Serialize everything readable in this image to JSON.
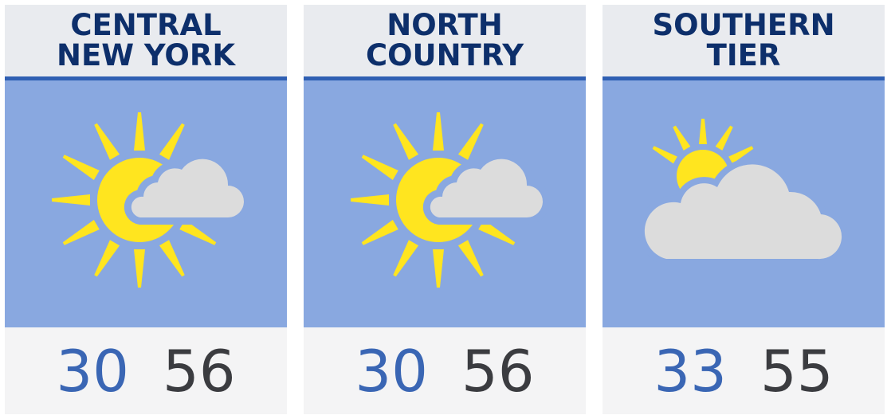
{
  "colors": {
    "title": "#0d2f6b",
    "accent_line": "#2f5fb3",
    "sky": "#89a8e0",
    "low": "#3a66b4",
    "high": "#3b3c40",
    "sun": "#ffe51f",
    "cloud": "#dcdcdc"
  },
  "regions": [
    {
      "title_line1": "CENTRAL",
      "title_line2": "NEW YORK",
      "icon": "partly-sunny-icon",
      "low": "30",
      "high": "56"
    },
    {
      "title_line1": "NORTH",
      "title_line2": "COUNTRY",
      "icon": "partly-sunny-icon",
      "low": "30",
      "high": "56"
    },
    {
      "title_line1": "SOUTHERN",
      "title_line2": "TIER",
      "icon": "mostly-cloudy-icon",
      "low": "33",
      "high": "55"
    }
  ]
}
